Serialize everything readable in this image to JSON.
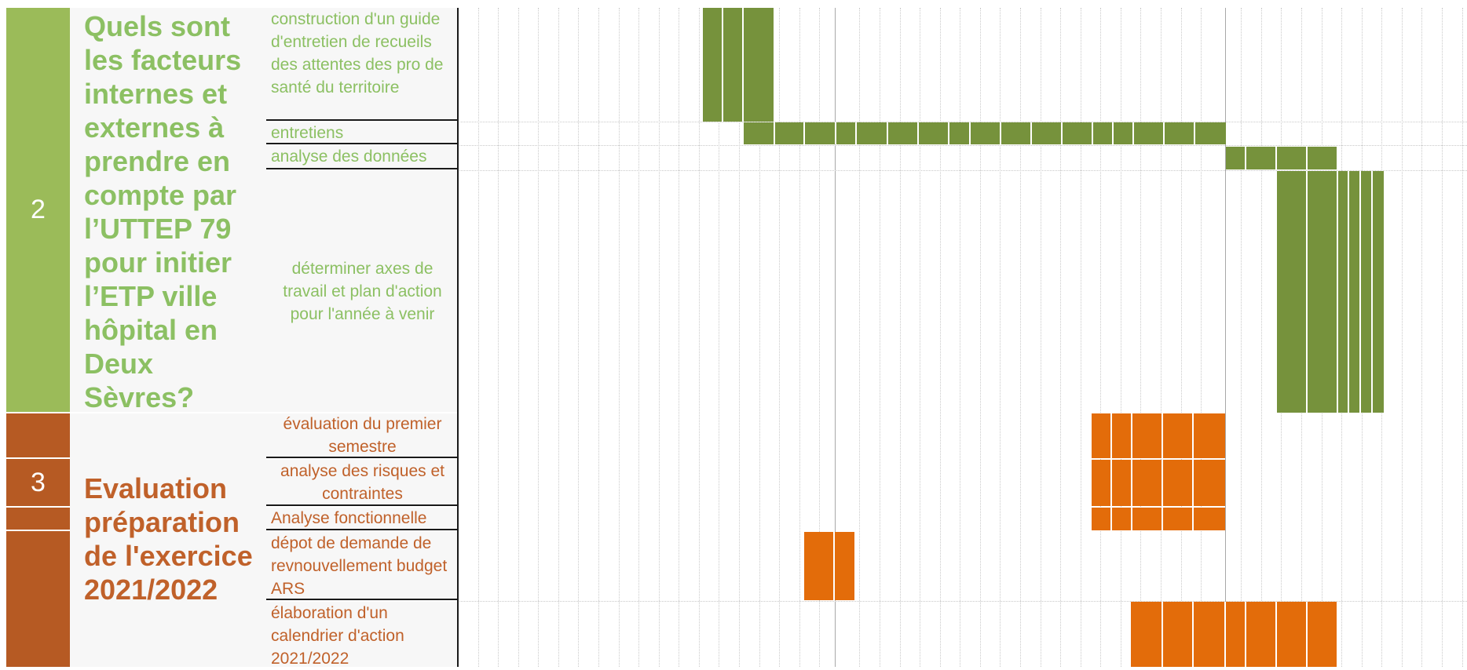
{
  "phases": [
    {
      "number": "2",
      "title": "Quels sont les facteurs internes et externes à prendre en compte par l’UTTEP 79 pour initier l’ETP ville hôpital en Deux Sèvres?",
      "tasks": [
        "construction d'un guide d'entretien de recueils des attentes des pro de santé du territoire",
        "entretiens",
        "analyse des données",
        "déterminer axes de travail et plan d'action pour l'année à venir"
      ]
    },
    {
      "number": "3",
      "title": "Evaluation préparation de l'exercice 2021/2022",
      "tasks": [
        "évaluation du premier semestre",
        "analyse des risques et contraintes",
        "Analyse fonctionnelle",
        "dépot de demande de revnouvellement budget ARS",
        "élaboration d'un calendrier d'action 2021/2022"
      ]
    }
  ],
  "colors": {
    "phase2_accent": "#9bbb59",
    "phase2_title": "#8cc063",
    "phase2_bar": "#76923c",
    "phase3_accent": "#b65a23",
    "phase3_title": "#c0612a",
    "phase3_bar": "#e36c0a",
    "label_bg": "#f7f7f7"
  }
}
